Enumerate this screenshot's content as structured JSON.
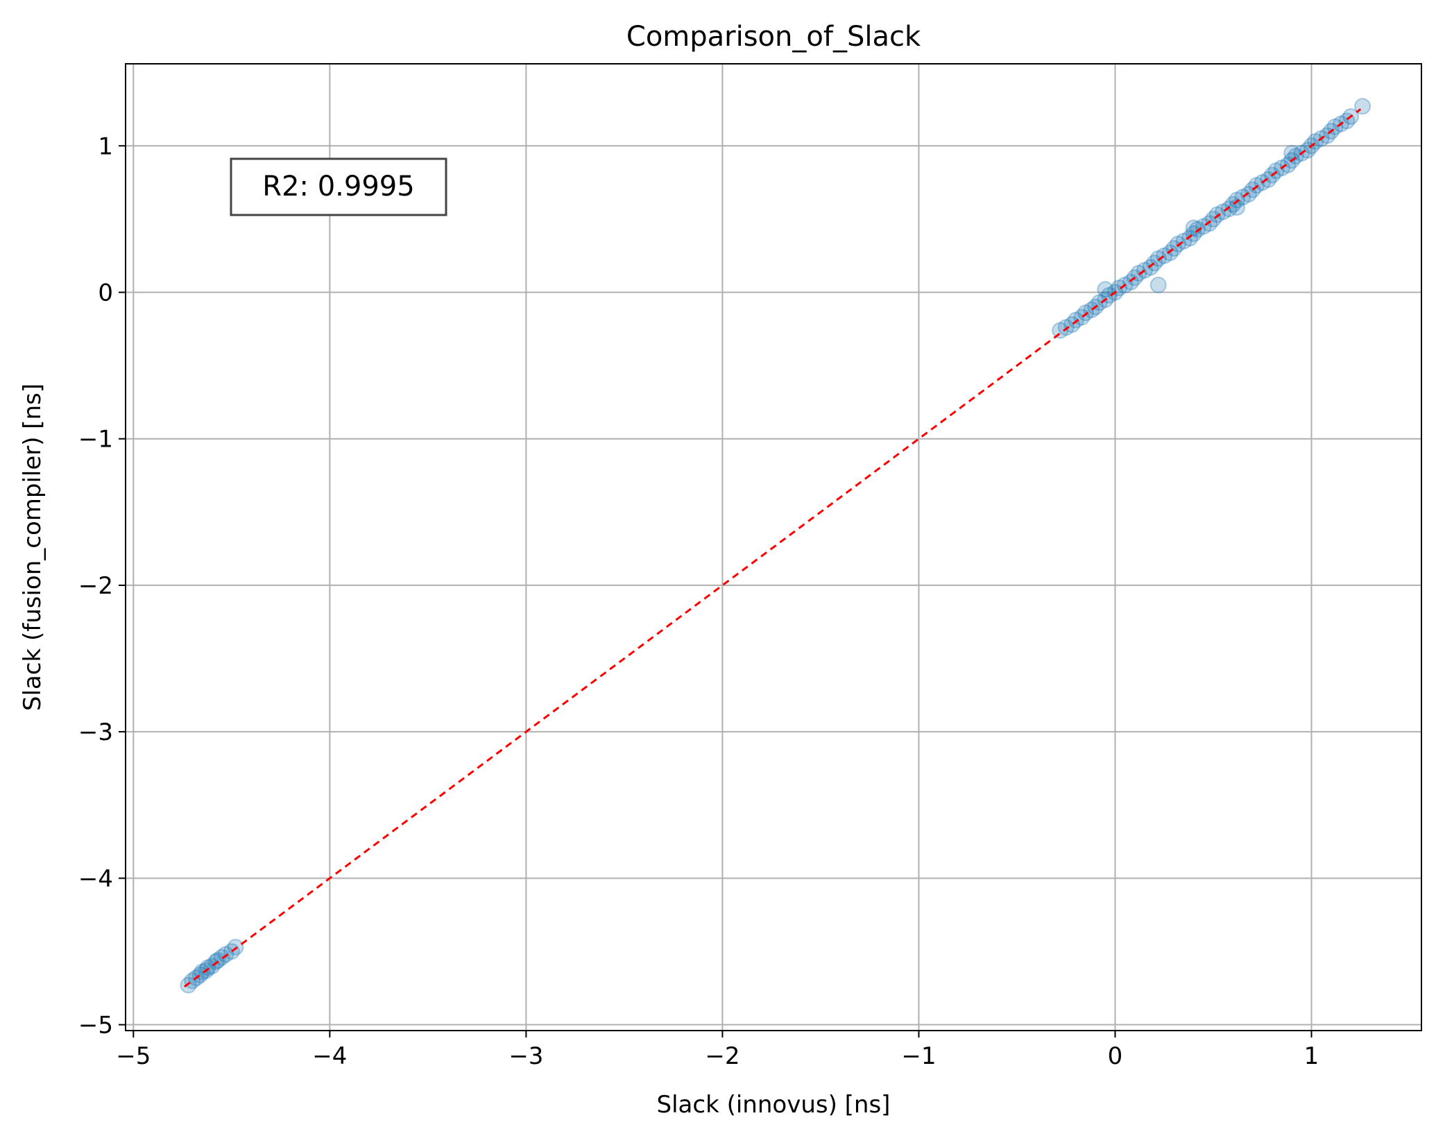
{
  "chart_data": {
    "type": "scatter",
    "title": "Comparison_of_Slack",
    "xlabel": "Slack (innovus) [ns]",
    "ylabel": "Slack (fusion_compiler) [ns]",
    "xlim": [
      -5.04,
      1.56
    ],
    "ylim": [
      -5.04,
      1.56
    ],
    "grid": true,
    "xticks": [
      -5,
      -4,
      -3,
      -2,
      -1,
      0,
      1
    ],
    "yticks": [
      -5,
      -4,
      -3,
      -2,
      -1,
      0,
      1
    ],
    "xtick_labels": [
      "−5",
      "−4",
      "−3",
      "−2",
      "−1",
      "0",
      "1"
    ],
    "ytick_labels": [
      "−5",
      "−4",
      "−3",
      "−2",
      "−1",
      "0",
      "1"
    ],
    "annotation": "R2: 0.9995",
    "colors": {
      "points": "#1f77b4",
      "reference_line": "#ff0000",
      "grid": "#b0b0b0"
    },
    "reference_line": {
      "style": "dashed",
      "x": [
        -4.74,
        1.25
      ],
      "y": [
        -4.74,
        1.25
      ]
    },
    "series": [
      {
        "x": [
          -4.72,
          -4.7,
          -4.68,
          -4.66,
          -4.65,
          -4.63,
          -4.62,
          -4.6,
          -4.58,
          -4.57,
          -4.55,
          -4.53,
          -4.5,
          -4.48,
          -0.28,
          -0.25,
          -0.22,
          -0.2,
          -0.17,
          -0.15,
          -0.12,
          -0.1,
          -0.08,
          -0.05,
          -0.03,
          0.0,
          0.02,
          0.05,
          0.08,
          0.1,
          0.12,
          0.15,
          0.18,
          0.2,
          0.22,
          0.25,
          0.28,
          0.3,
          0.32,
          0.35,
          0.38,
          0.4,
          0.42,
          0.45,
          0.48,
          0.5,
          0.52,
          0.55,
          0.58,
          0.6,
          0.62,
          0.65,
          0.68,
          0.7,
          0.72,
          0.75,
          0.78,
          0.8,
          0.82,
          0.85,
          0.88,
          0.9,
          0.92,
          0.95,
          0.98,
          1.0,
          1.02,
          1.05,
          1.08,
          1.1,
          1.12,
          1.15,
          1.18,
          1.2,
          1.26,
          0.22,
          -0.05,
          0.4,
          0.62,
          0.9
        ],
        "y": [
          -4.73,
          -4.7,
          -4.68,
          -4.66,
          -4.64,
          -4.63,
          -4.61,
          -4.6,
          -4.57,
          -4.56,
          -4.54,
          -4.52,
          -4.5,
          -4.47,
          -0.26,
          -0.24,
          -0.22,
          -0.19,
          -0.17,
          -0.14,
          -0.12,
          -0.1,
          -0.07,
          -0.05,
          -0.02,
          0.0,
          0.03,
          0.05,
          0.07,
          0.1,
          0.13,
          0.15,
          0.17,
          0.2,
          0.23,
          0.25,
          0.27,
          0.3,
          0.33,
          0.35,
          0.37,
          0.4,
          0.43,
          0.45,
          0.47,
          0.5,
          0.53,
          0.55,
          0.57,
          0.6,
          0.63,
          0.65,
          0.67,
          0.7,
          0.73,
          0.75,
          0.77,
          0.8,
          0.83,
          0.85,
          0.87,
          0.9,
          0.93,
          0.95,
          0.97,
          1.0,
          1.03,
          1.05,
          1.07,
          1.1,
          1.13,
          1.15,
          1.17,
          1.2,
          1.27,
          0.05,
          0.02,
          0.44,
          0.58,
          0.95
        ]
      }
    ]
  }
}
